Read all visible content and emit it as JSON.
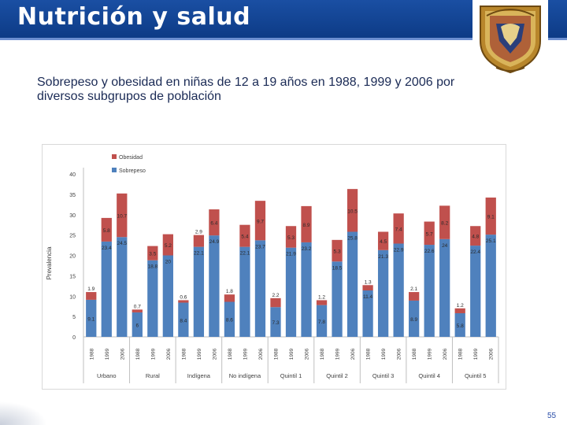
{
  "slide": {
    "title": "Nutrición y salud",
    "subtitle": "Sobrepeso y obesidad en niñas de 12 a 19 años en 1988, 1999 y 2006 por diversos subgrupos de población",
    "page_number": "55"
  },
  "logo": {
    "name": "unam-seal-icon"
  },
  "colors": {
    "header": "#0d3b86",
    "sobrepeso": "#4f81bd",
    "obesidad": "#c0504d"
  },
  "chart_data": {
    "type": "bar",
    "stacked": true,
    "ylabel": "Prevalencia",
    "ylim": [
      0,
      40
    ],
    "yticks": [
      0,
      5,
      10,
      15,
      20,
      25,
      30,
      35,
      40
    ],
    "categories": [
      "1988",
      "1999",
      "2006",
      "1988",
      "1999",
      "2006",
      "1988",
      "1999",
      "2006",
      "1988",
      "1999",
      "2006",
      "1988",
      "1999",
      "2006",
      "1988",
      "1999",
      "2006",
      "1988",
      "1999",
      "2006",
      "1988",
      "1999",
      "2006",
      "1988",
      "1999",
      "2006"
    ],
    "groups": [
      "Urbano",
      "Rural",
      "Indígena",
      "No indígena",
      "Quintil 1",
      "Quintil 2",
      "Quintil 3",
      "Quintil 4",
      "Quintil 5"
    ],
    "series": [
      {
        "name": "Sobrepeso",
        "values": [
          9.1,
          23.4,
          24.5,
          6,
          18.8,
          20,
          8.4,
          22.1,
          24.9,
          8.6,
          22.1,
          23.7,
          7.3,
          21.9,
          23.2,
          7.8,
          18.5,
          25.8,
          11.4,
          21.3,
          22.9,
          8.9,
          22.6,
          24,
          5.8,
          22.4,
          25.1
        ]
      },
      {
        "name": "Obesidad",
        "values": [
          1.9,
          5.8,
          10.7,
          0.7,
          3.5,
          5.2,
          0.6,
          2.9,
          6.4,
          1.8,
          5.4,
          9.7,
          2.2,
          5.3,
          8.9,
          1.2,
          5.3,
          10.5,
          1.3,
          4.5,
          7.4,
          2.1,
          5.7,
          8.2,
          1.2,
          4.8,
          9.1
        ]
      }
    ],
    "sobrepeso_labels": [
      "9.1",
      "23.4",
      "24.5",
      "6",
      "18.8",
      "20",
      "8.4",
      "22.1",
      "24.9",
      "8.6",
      "22.1",
      "23.7",
      "7.3",
      "21.9",
      "23.2",
      "7.8",
      "18.5",
      "25.8",
      "11.4",
      "21.3",
      "22.9",
      "8.9",
      "22.6",
      "24",
      "5.8",
      "22.4",
      "25.1"
    ],
    "obesidad_labels": [
      "1.9",
      "5.8",
      "10.7",
      "0.7",
      "3.5",
      "5.2",
      "0.6",
      "2.9",
      "6.4",
      "1.8",
      "5.4",
      "9.7",
      "2.2",
      "5.3",
      "8.9",
      "1.2",
      "5.3",
      "10.5",
      "1.3",
      "4.5",
      "7.4",
      "2.1",
      "5.7",
      "8.2",
      "1.2",
      "4.8",
      "9.1"
    ],
    "legend": [
      "Obesidad",
      "Sobrepeso"
    ],
    "legend_position": "top-left"
  }
}
